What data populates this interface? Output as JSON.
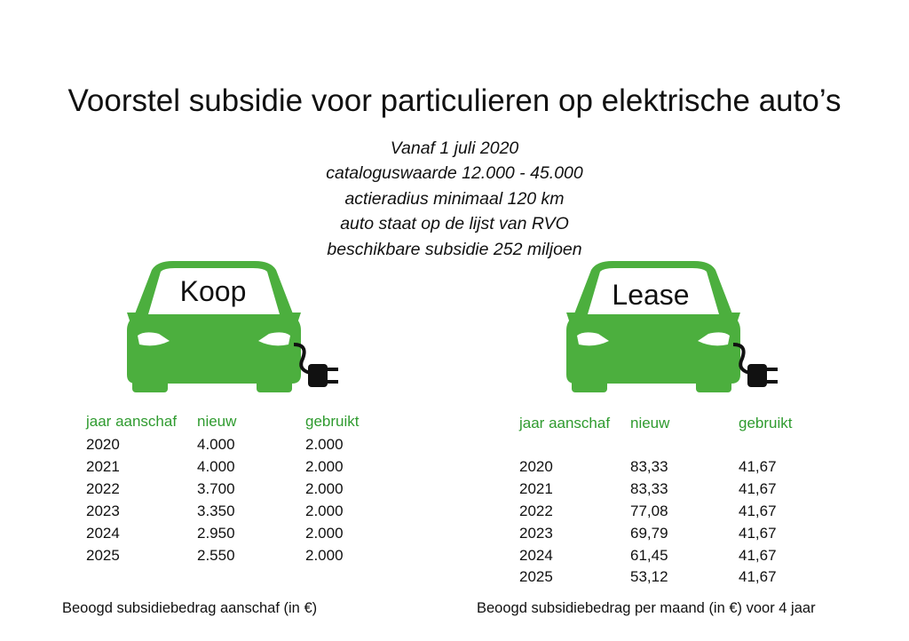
{
  "title": "Voorstel subsidie voor particulieren op elektrische auto’s",
  "criteria": [
    "Vanaf 1 juli 2020",
    "cataloguswaarde 12.000 - 45.000",
    "actieradius minimaal 120 km",
    "auto staat op de lijst van RVO",
    "beschikbare subsidie 252 miljoen"
  ],
  "colors": {
    "car": "#4caf3e",
    "header": "#2f9b2f",
    "text": "#111111"
  },
  "koop": {
    "label": "Koop",
    "icons": {
      "car": "electric-car-icon",
      "plug": "plug-icon"
    },
    "headers": [
      "jaar aanschaf",
      "nieuw",
      "gebruikt"
    ],
    "rows": [
      [
        "2020",
        "4.000",
        "2.000"
      ],
      [
        "2021",
        "4.000",
        "2.000"
      ],
      [
        "2022",
        "3.700",
        "2.000"
      ],
      [
        "2023",
        "3.350",
        "2.000"
      ],
      [
        "2024",
        "2.950",
        "2.000"
      ],
      [
        "2025",
        "2.550",
        "2.000"
      ]
    ],
    "caption": "Beoogd subsidiebedrag aanschaf (in €)"
  },
  "lease": {
    "label": "Lease",
    "icons": {
      "car": "electric-car-icon",
      "plug": "plug-icon"
    },
    "headers": [
      "jaar aanschaf",
      "nieuw",
      "gebruikt"
    ],
    "rows": [
      [
        "2020",
        "83,33",
        "41,67"
      ],
      [
        "2021",
        "83,33",
        "41,67"
      ],
      [
        "2022",
        "77,08",
        "41,67"
      ],
      [
        "2023",
        "69,79",
        "41,67"
      ],
      [
        "2024",
        "61,45",
        "41,67"
      ],
      [
        "2025",
        "53,12",
        "41,67"
      ]
    ],
    "caption": "Beoogd subsidiebedrag per maand (in €) voor 4 jaar"
  }
}
